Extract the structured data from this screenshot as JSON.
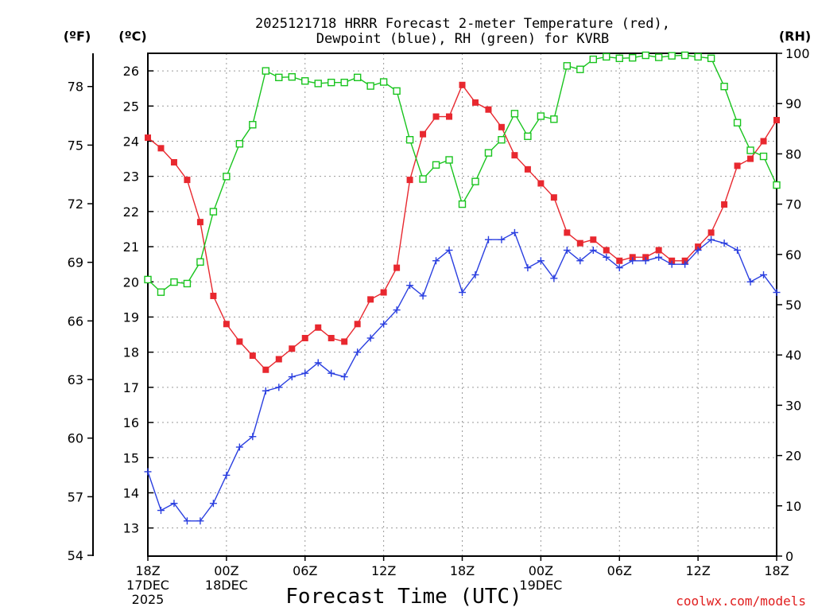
{
  "chart_data": {
    "type": "line",
    "title_lines": [
      "2025121718 HRRR Forecast 2-meter Temperature (red),",
      "Dewpoint (blue), RH (green) for KVRB"
    ],
    "units": {
      "fahrenheit": "(ºF)",
      "celsius": "(ºC)",
      "rh": "(RH)"
    },
    "xlabel": "Forecast Time (UTC)",
    "credit": "coolwx.com/models",
    "x_range_hours": [
      0,
      48
    ],
    "celsius_range": [
      12.2,
      26.5
    ],
    "fahrenheit_ticks": [
      "54",
      "57",
      "60",
      "63",
      "66",
      "69",
      "72",
      "75",
      "78"
    ],
    "celsius_ticks": [
      "13",
      "14",
      "15",
      "16",
      "17",
      "18",
      "19",
      "20",
      "21",
      "22",
      "23",
      "24",
      "25",
      "26"
    ],
    "rh_ticks": [
      "0",
      "10",
      "20",
      "30",
      "40",
      "50",
      "60",
      "70",
      "80",
      "90",
      "100"
    ],
    "x_ticks": [
      {
        "hour": 0,
        "lines": [
          "18Z",
          "17DEC",
          "2025"
        ]
      },
      {
        "hour": 6,
        "lines": [
          "00Z",
          "18DEC"
        ]
      },
      {
        "hour": 12,
        "lines": [
          "06Z"
        ]
      },
      {
        "hour": 18,
        "lines": [
          "12Z"
        ]
      },
      {
        "hour": 24,
        "lines": [
          "18Z"
        ]
      },
      {
        "hour": 30,
        "lines": [
          "00Z",
          "19DEC"
        ]
      },
      {
        "hour": 36,
        "lines": [
          "06Z"
        ]
      },
      {
        "hour": 42,
        "lines": [
          "12Z"
        ]
      },
      {
        "hour": 48,
        "lines": [
          "18Z"
        ]
      }
    ],
    "series": [
      {
        "name": "Temperature",
        "unit": "C",
        "color": "#e8282f",
        "marker": "filled-square",
        "values": [
          24.1,
          23.8,
          23.4,
          22.9,
          21.7,
          19.6,
          18.8,
          18.3,
          17.9,
          17.5,
          17.8,
          18.1,
          18.4,
          18.7,
          18.4,
          18.3,
          18.8,
          19.5,
          19.7,
          20.4,
          22.9,
          24.2,
          24.7,
          24.7,
          25.6,
          25.1,
          24.9,
          24.4,
          23.6,
          23.2,
          22.8,
          22.4,
          21.4,
          21.1,
          21.2,
          20.9,
          20.6,
          20.7,
          20.7,
          20.9,
          20.6,
          20.6,
          21.0,
          21.4,
          22.2,
          23.3,
          23.5,
          24.0,
          24.6
        ]
      },
      {
        "name": "Dewpoint",
        "unit": "C",
        "color": "#2a3fe0",
        "marker": "plus",
        "values": [
          14.6,
          13.5,
          13.7,
          13.2,
          13.2,
          13.7,
          14.5,
          15.3,
          15.6,
          16.9,
          17.0,
          17.3,
          17.4,
          17.7,
          17.4,
          17.3,
          18.0,
          18.4,
          18.8,
          19.2,
          19.9,
          19.6,
          20.6,
          20.9,
          19.7,
          20.2,
          21.2,
          21.2,
          21.4,
          20.4,
          20.6,
          20.1,
          20.9,
          20.6,
          20.9,
          20.7,
          20.4,
          20.6,
          20.6,
          20.7,
          20.5,
          20.5,
          20.9,
          21.2,
          21.1,
          20.9,
          20.0,
          20.2,
          19.7
        ]
      },
      {
        "name": "RH",
        "unit": "%",
        "color": "#19c41e",
        "marker": "open-square",
        "values": [
          55.0,
          52.5,
          54.5,
          54.2,
          58.5,
          68.5,
          75.5,
          82.0,
          85.8,
          96.5,
          95.2,
          95.3,
          94.5,
          94.0,
          94.2,
          94.2,
          95.2,
          93.5,
          94.3,
          92.5,
          82.8,
          75.0,
          77.8,
          78.8,
          70.0,
          74.5,
          80.2,
          82.8,
          88.0,
          83.5,
          87.5,
          86.9,
          97.5,
          96.8,
          98.8,
          99.3,
          99.0,
          99.1,
          99.6,
          99.2,
          99.5,
          99.6,
          99.3,
          99.0,
          93.4,
          86.2,
          80.7,
          79.5,
          73.8
        ]
      }
    ]
  }
}
